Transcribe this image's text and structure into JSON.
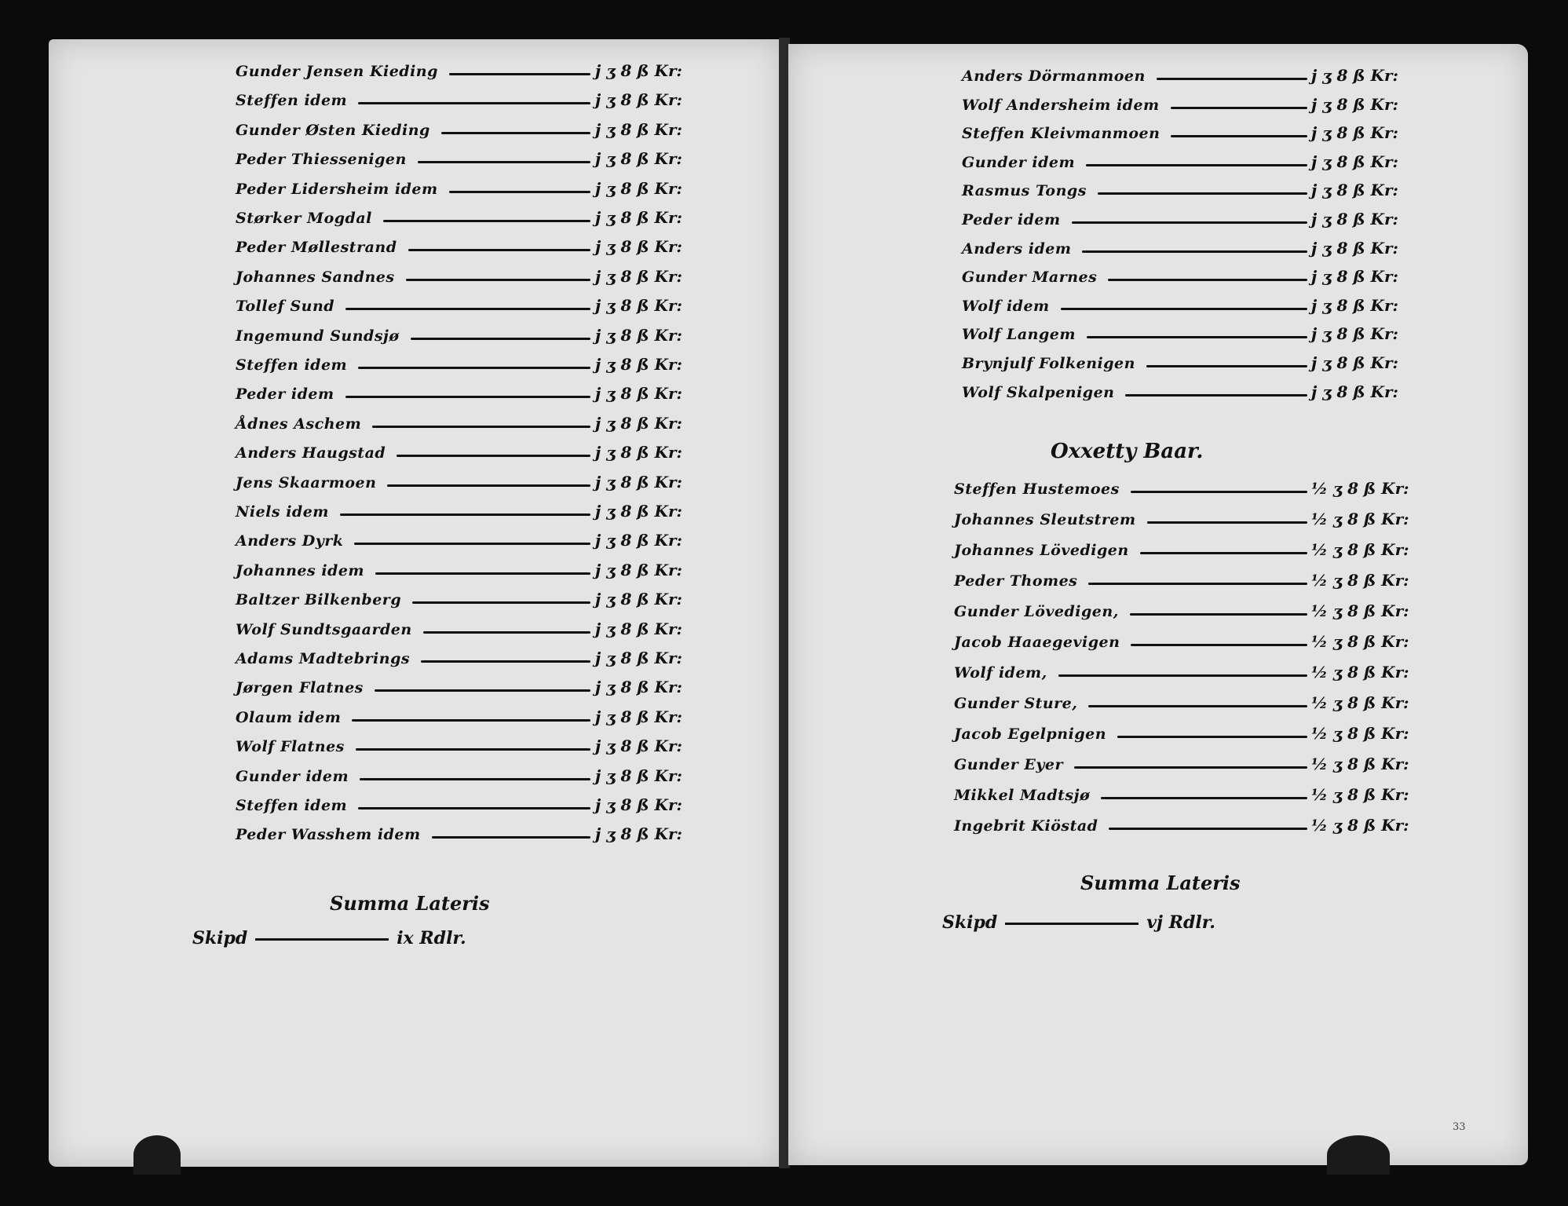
{
  "left_page": {
    "entries": [
      {
        "name": "Gunder Jensen Kieding",
        "amount": "j ʒ 8 ß Kr:"
      },
      {
        "name": "Steffen idem",
        "amount": "j ʒ 8 ß Kr:"
      },
      {
        "name": "Gunder Østen Kieding",
        "amount": "j ʒ 8 ß Kr:"
      },
      {
        "name": "Peder Thiessenigen",
        "amount": "j ʒ 8 ß Kr:"
      },
      {
        "name": "Peder Lidersheim idem",
        "amount": "j ʒ 8 ß Kr:"
      },
      {
        "name": "Størker Mogdal",
        "amount": "j ʒ 8 ß Kr:"
      },
      {
        "name": "Peder Møllestrand",
        "amount": "j ʒ 8 ß Kr:"
      },
      {
        "name": "Johannes Sandnes",
        "amount": "j ʒ 8 ß Kr:"
      },
      {
        "name": "Tollef Sund",
        "amount": "j ʒ 8 ß Kr:"
      },
      {
        "name": "Ingemund Sundsjø",
        "amount": "j ʒ 8 ß Kr:"
      },
      {
        "name": "Steffen idem",
        "amount": "j ʒ 8 ß Kr:"
      },
      {
        "name": "Peder idem",
        "amount": "j ʒ 8 ß Kr:"
      },
      {
        "name": "Ådnes Aschem",
        "amount": "j ʒ 8 ß Kr:"
      },
      {
        "name": "Anders Haugstad",
        "amount": "j ʒ 8 ß Kr:"
      },
      {
        "name": "Jens Skaarmoen",
        "amount": "j ʒ 8 ß Kr:"
      },
      {
        "name": "Niels idem",
        "amount": "j ʒ 8 ß Kr:"
      },
      {
        "name": "Anders Dyrk",
        "amount": "j ʒ 8 ß Kr:"
      },
      {
        "name": "Johannes idem",
        "amount": "j ʒ 8 ß Kr:"
      },
      {
        "name": "Baltzer Bilkenberg",
        "amount": "j ʒ 8 ß Kr:"
      },
      {
        "name": "Wolf Sundtsgaarden",
        "amount": "j ʒ 8 ß Kr:"
      },
      {
        "name": "Adams Madtebrings",
        "amount": "j ʒ 8 ß Kr:"
      },
      {
        "name": "Jørgen Flatnes",
        "amount": "j ʒ 8 ß Kr:"
      },
      {
        "name": "Olaum idem",
        "amount": "j ʒ 8 ß Kr:"
      },
      {
        "name": "Wolf Flatnes",
        "amount": "j ʒ 8 ß Kr:"
      },
      {
        "name": "Gunder idem",
        "amount": "j ʒ 8 ß Kr:"
      },
      {
        "name": "Steffen idem",
        "amount": "j ʒ 8 ß Kr:"
      },
      {
        "name": "Peder Wasshem idem",
        "amount": "j ʒ 8 ß Kr:"
      }
    ],
    "summa_label": "Summa Lateris",
    "total_label": "Skipd",
    "total_value": "ix Rdlr."
  },
  "right_page": {
    "entries_top": [
      {
        "name": "Anders Dörmanmoen",
        "amount": "j ʒ 8 ß Kr:"
      },
      {
        "name": "Wolf Andersheim idem",
        "amount": "j ʒ 8 ß Kr:"
      },
      {
        "name": "Steffen Kleivmanmoen",
        "amount": "j ʒ 8 ß Kr:"
      },
      {
        "name": "Gunder idem",
        "amount": "j ʒ 8 ß Kr:"
      },
      {
        "name": "Rasmus Tongs",
        "amount": "j ʒ 8 ß Kr:"
      },
      {
        "name": "Peder idem",
        "amount": "j ʒ 8 ß Kr:"
      },
      {
        "name": "Anders idem",
        "amount": "j ʒ 8 ß Kr:"
      },
      {
        "name": "Gunder Marnes",
        "amount": "j ʒ 8 ß Kr:"
      },
      {
        "name": "Wolf idem",
        "amount": "j ʒ 8 ß Kr:"
      },
      {
        "name": "Wolf Langem",
        "amount": "j ʒ 8 ß Kr:"
      },
      {
        "name": "Brynjulf Folkenigen",
        "amount": "j ʒ 8 ß Kr:"
      },
      {
        "name": "Wolf Skalpenigen",
        "amount": "j ʒ 8 ß Kr:"
      }
    ],
    "section_heading": "Oxxetty Baar.",
    "entries_bottom": [
      {
        "name": "Steffen Hustemoes",
        "amount": "½ ʒ 8 ß Kr:"
      },
      {
        "name": "Johannes Sleutstrem",
        "amount": "½ ʒ 8 ß Kr:"
      },
      {
        "name": "Johannes Lövedigen",
        "amount": "½ ʒ 8 ß Kr:"
      },
      {
        "name": "Peder Thomes",
        "amount": "½ ʒ 8 ß Kr:"
      },
      {
        "name": "Gunder Lövedigen,",
        "amount": "½ ʒ 8 ß Kr:"
      },
      {
        "name": "Jacob Haaegevigen",
        "amount": "½ ʒ 8 ß Kr:"
      },
      {
        "name": "Wolf idem,",
        "amount": "½ ʒ 8 ß Kr:"
      },
      {
        "name": "Gunder Sture,",
        "amount": "½ ʒ 8 ß Kr:"
      },
      {
        "name": "Jacob Egelpnigen",
        "amount": "½ ʒ 8 ß Kr:"
      },
      {
        "name": "Gunder Eyer",
        "amount": "½ ʒ 8 ß Kr:"
      },
      {
        "name": "Mikkel Madtsjø",
        "amount": "½ ʒ 8 ß Kr:"
      },
      {
        "name": "Ingebrit Kiöstad",
        "amount": "½ ʒ 8 ß Kr:"
      }
    ],
    "summa_label": "Summa Lateris",
    "total_label": "Skipd",
    "total_value": "vj Rdlr."
  },
  "page_number": "33",
  "colors": {
    "paper": "#e4e4e4",
    "ink": "#111111",
    "background": "#0b0b0b"
  }
}
